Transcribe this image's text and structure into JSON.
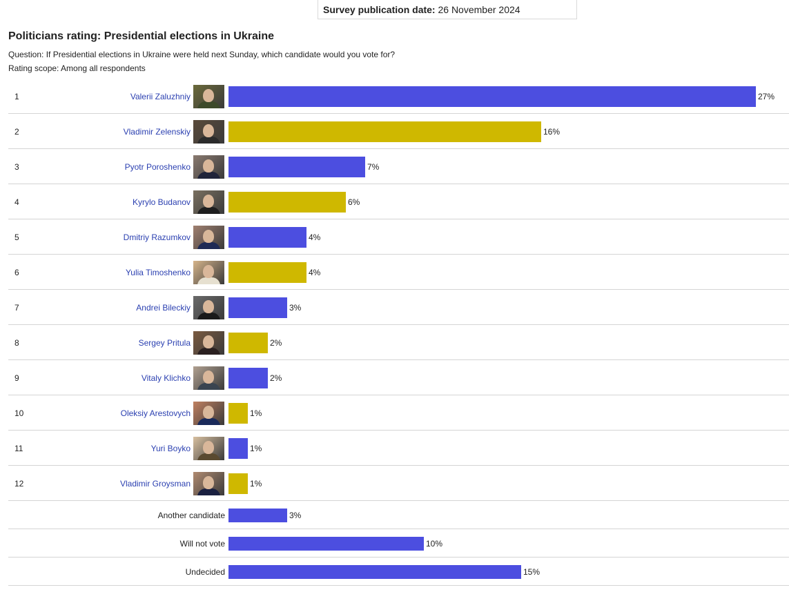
{
  "header": {
    "pub_label": "Survey publication date:",
    "pub_date": "26 November 2024",
    "title": "Politicians rating: Presidential elections in Ukraine",
    "question": "Question: If Presidential elections in Ukraine were held next Sunday, which candidate would you vote for?",
    "scope": "Rating scope: Among all respondents"
  },
  "colors": {
    "blue": "#4c4ee0",
    "yellow": "#cfb800",
    "link": "#2a3fb0"
  },
  "chart_data": {
    "type": "bar",
    "orientation": "horizontal",
    "unit": "%",
    "categories": [
      "Valerii Zaluzhniy",
      "Vladimir Zelenskiy",
      "Pyotr Poroshenko",
      "Kyrylo Budanov",
      "Dmitriy Razumkov",
      "Yulia Timoshenko",
      "Andrei Bileckiy",
      "Sergey Pritula",
      "Vitaly Klichko",
      "Oleksiy Arestovych",
      "Yuri Boyko",
      "Vladimir Groysman",
      "Another candidate",
      "Will not vote",
      "Undecided"
    ],
    "ranks": [
      "1",
      "2",
      "3",
      "4",
      "5",
      "6",
      "7",
      "8",
      "9",
      "10",
      "11",
      "12",
      "",
      "",
      ""
    ],
    "values": [
      27,
      16,
      7,
      6,
      4,
      4,
      3,
      2,
      2,
      1,
      1,
      1,
      3,
      10,
      15
    ],
    "value_labels": [
      "27%",
      "16%",
      "7%",
      "6%",
      "4%",
      "4%",
      "3%",
      "2%",
      "2%",
      "1%",
      "1%",
      "1%",
      "3%",
      "10%",
      "15%"
    ],
    "bar_colors": [
      "blue",
      "yellow",
      "blue",
      "yellow",
      "blue",
      "yellow",
      "blue",
      "yellow",
      "blue",
      "yellow",
      "blue",
      "yellow",
      "blue",
      "blue",
      "blue"
    ],
    "has_photo": [
      true,
      true,
      true,
      true,
      true,
      true,
      true,
      true,
      true,
      true,
      true,
      true,
      false,
      false,
      false
    ],
    "is_link": [
      true,
      true,
      true,
      true,
      true,
      true,
      true,
      true,
      true,
      true,
      true,
      true,
      false,
      false,
      false
    ],
    "xlim": [
      0,
      27
    ]
  }
}
